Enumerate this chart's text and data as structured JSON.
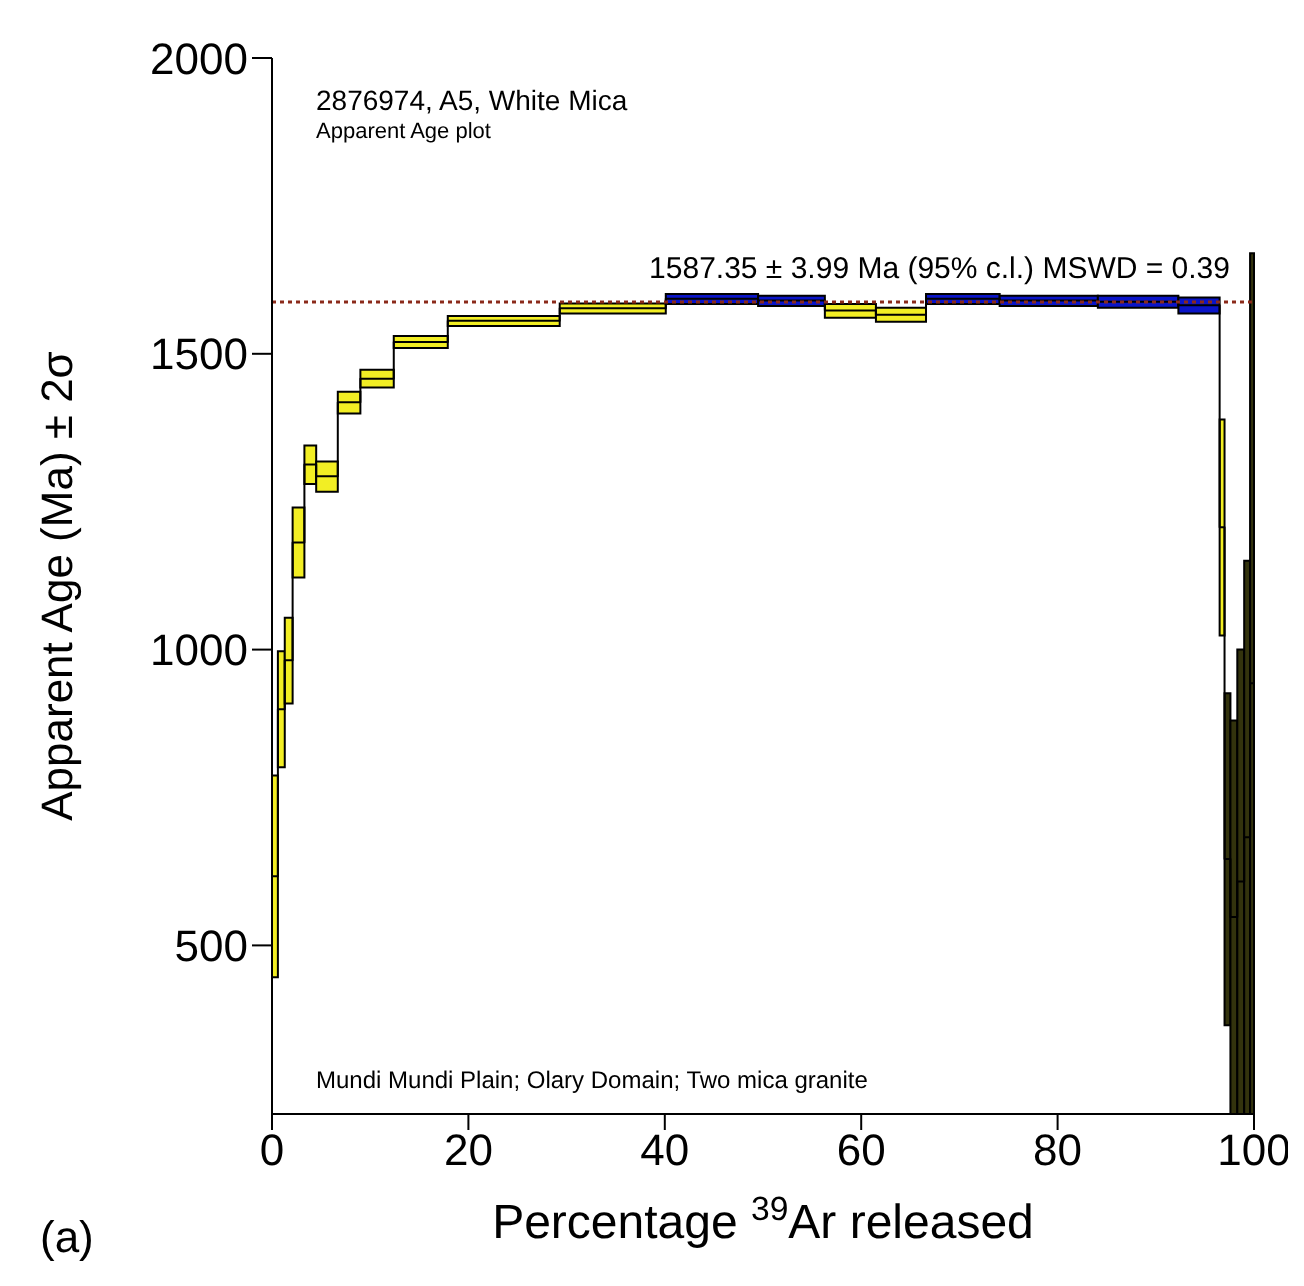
{
  "chart_data": {
    "type": "bar",
    "title": "2876974, A5, White Mica",
    "subtitle": "Apparent Age plot",
    "xlabel": "Percentage $^{39}$Ar released",
    "ylabel": "Apparent Age (Ma) ± 2σ",
    "annotations": [
      "Mundi Mundi Plain; Olary Domain; Two mica granite",
      "(a)"
    ],
    "xlim": [
      0,
      100
    ],
    "xticks": [
      0,
      20,
      40,
      60,
      80,
      100
    ],
    "ylim": [
      215,
      2000
    ],
    "yticks": [
      500,
      1000,
      1500,
      2000
    ],
    "ref_lines": [
      {
        "axis": "y",
        "value": 1587.35,
        "label": "1587.35 ± 3.99 Ma (95% c.l.) MSWD = 0.39",
        "color": "#8b2a1a",
        "line_style": "dotted"
      }
    ],
    "series": [
      {
        "x": [
          0.3,
          0.95,
          1.7,
          2.7,
          3.9,
          5.6,
          7.85,
          10.7,
          15.15,
          23.6,
          34.7,
          44.8,
          52.9,
          58.9,
          64.05,
          70.35,
          79.1,
          88.2,
          94.4,
          96.75,
          97.3,
          97.95,
          98.65,
          99.3,
          99.8
        ],
        "base": [
          446,
          801,
          909,
          1122,
          1280,
          1267,
          1399,
          1443,
          1510,
          1547,
          1568,
          1584,
          1581,
          1561,
          1554,
          1584,
          1581,
          1578,
          1568,
          1024,
          365,
          215,
          215,
          215,
          215
        ],
        "values": [
          341,
          196,
          145,
          118,
          65,
          51,
          37,
          30,
          20,
          17,
          17,
          17,
          17,
          23,
          24,
          17,
          17,
          20,
          27,
          365,
          561,
          665,
          785,
          935,
          1455
        ],
        "colors": [
          "#f2ee24",
          "#f2ee24",
          "#f2ee24",
          "#f2ee24",
          "#f2ee24",
          "#f2ee24",
          "#f2ee24",
          "#f2ee24",
          "#f2ee24",
          "#f2ee24",
          "#f2ee24",
          "#0a14c8",
          "#0a14c8",
          "#f2ee24",
          "#f2ee24",
          "#0a14c8",
          "#0a14c8",
          "#0a14c8",
          "#0a14c8",
          "#f2ee24",
          "#33330d",
          "#33330d",
          "#33330d",
          "#33330d",
          "#33330d"
        ]
      },
      {
        "type": "step",
        "color": "#000000",
        "x": [
          0,
          0.6,
          1.3,
          2.1,
          3.3,
          4.5,
          6.7,
          9.0,
          12.4,
          17.9,
          29.3,
          40.1,
          49.5,
          56.3,
          61.5,
          66.6,
          74.1,
          84.1,
          92.3,
          96.5,
          97.0,
          97.6,
          98.3,
          99.0,
          99.6,
          100
        ],
        "values": [
          617,
          899,
          982,
          1181,
          1313,
          1293,
          1418,
          1458,
          1520,
          1556,
          1577,
          1593,
          1590,
          1573,
          1566,
          1593,
          1590,
          1588,
          1582,
          1207,
          646,
          548,
          608,
          683,
          943,
          943
        ]
      }
    ]
  }
}
